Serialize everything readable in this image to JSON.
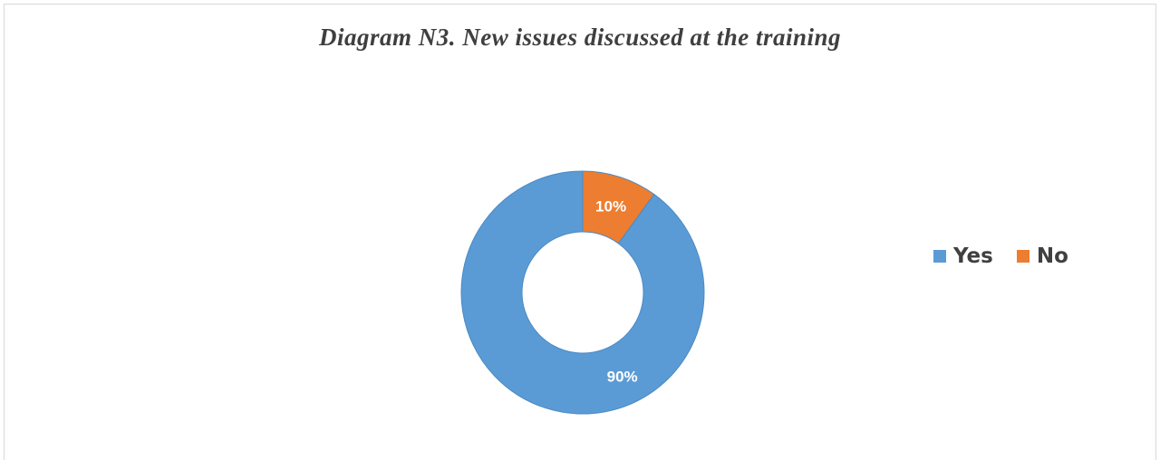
{
  "chart_data": {
    "type": "pie",
    "subtype": "donut",
    "title": "Diagram N3. New issues discussed at the training",
    "categories": [
      "Yes",
      "No"
    ],
    "values": [
      90,
      10
    ],
    "value_labels": [
      "90%",
      "10%"
    ],
    "colors": [
      "#5b9bd5",
      "#ed7d31"
    ],
    "legend": {
      "placement": "right",
      "entries": [
        "Yes",
        "No"
      ]
    }
  }
}
